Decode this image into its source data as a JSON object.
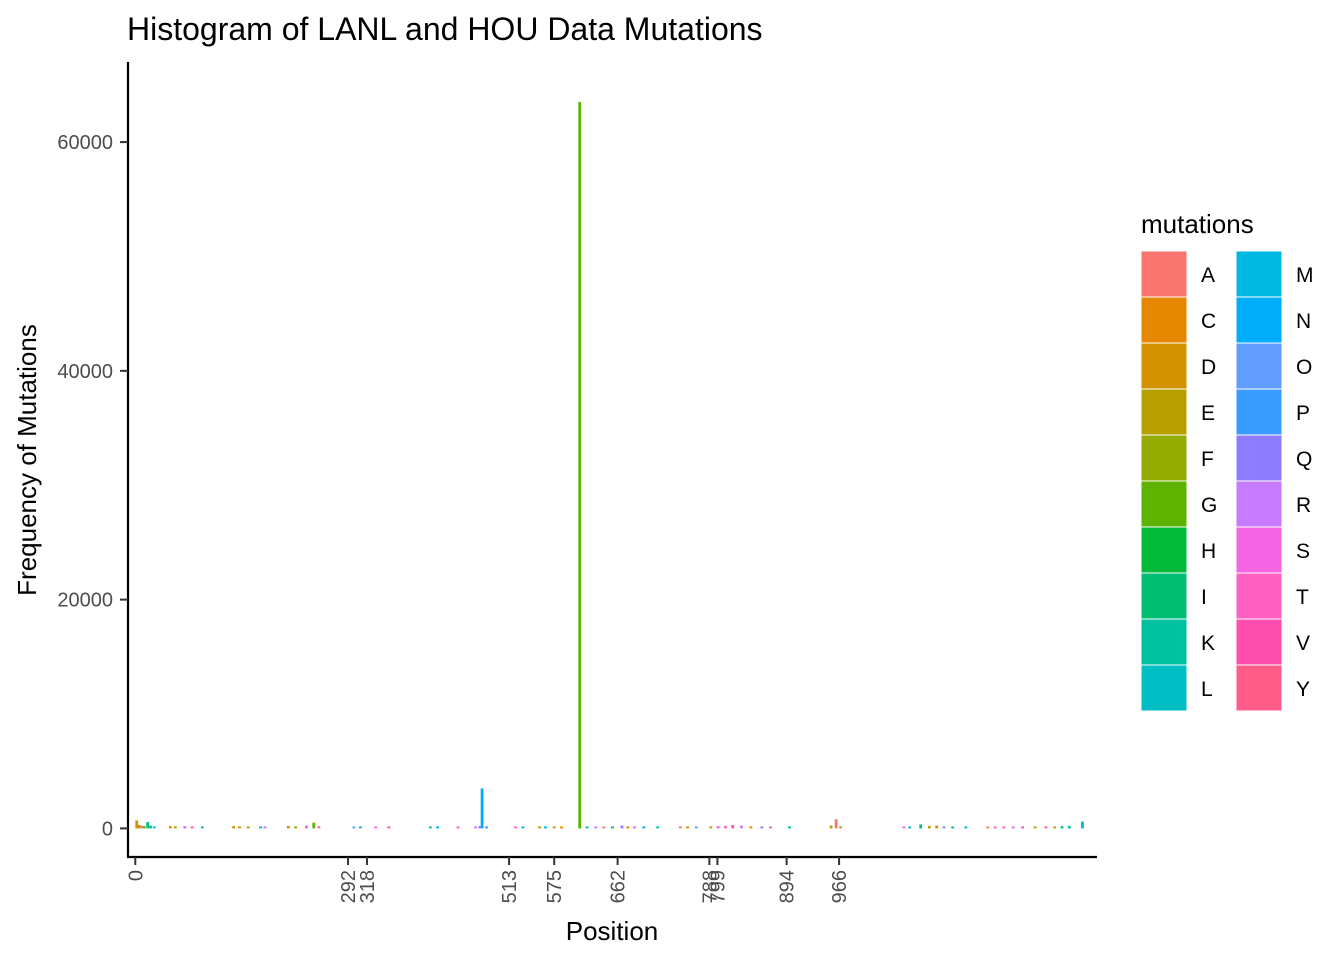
{
  "chart_data": {
    "type": "bar",
    "title": "Histogram of LANL and HOU Data Mutations",
    "xlabel": "Position",
    "ylabel": "Frequency of Mutations",
    "ylim": [
      -2500,
      67000
    ],
    "xlim": [
      -10,
      1320
    ],
    "y_ticks": [
      0,
      20000,
      40000,
      60000
    ],
    "y_tick_labels": [
      "0",
      "20000",
      "40000",
      "60000"
    ],
    "x_ticks": [
      0,
      292,
      318,
      513,
      575,
      662,
      788,
      799,
      894,
      966
    ],
    "x_tick_labels": [
      "0",
      "292",
      "318",
      "513",
      "575",
      "662",
      "788",
      "799",
      "894",
      "966"
    ],
    "grid": false,
    "legend": {
      "title": "mutations",
      "placement": "right",
      "columns": 2,
      "entries": [
        {
          "label": "A",
          "color": "#F8766D"
        },
        {
          "label": "C",
          "color": "#E58700"
        },
        {
          "label": "D",
          "color": "#D39200"
        },
        {
          "label": "E",
          "color": "#B79F00"
        },
        {
          "label": "F",
          "color": "#93AA00"
        },
        {
          "label": "G",
          "color": "#5EB300"
        },
        {
          "label": "H",
          "color": "#00BA38"
        },
        {
          "label": "I",
          "color": "#00BF74"
        },
        {
          "label": "K",
          "color": "#00C19F"
        },
        {
          "label": "L",
          "color": "#00BFC4"
        },
        {
          "label": "M",
          "color": "#00B9E3"
        },
        {
          "label": "N",
          "color": "#00ADFA"
        },
        {
          "label": "O",
          "color": "#619CFF"
        },
        {
          "label": "P",
          "color": "#3B9CFF"
        },
        {
          "label": "Q",
          "color": "#8D7CFF"
        },
        {
          "label": "R",
          "color": "#C77CFF"
        },
        {
          "label": "S",
          "color": "#F564E3"
        },
        {
          "label": "T",
          "color": "#FF61C3"
        },
        {
          "label": "V",
          "color": "#FF4FAE"
        },
        {
          "label": "Y",
          "color": "#FF5C8A"
        }
      ]
    },
    "bars": [
      {
        "x": 2,
        "y": 700,
        "mutation": "D"
      },
      {
        "x": 5,
        "y": 300,
        "mutation": "E"
      },
      {
        "x": 8,
        "y": 250,
        "mutation": "A"
      },
      {
        "x": 12,
        "y": 200,
        "mutation": "G"
      },
      {
        "x": 17,
        "y": 550,
        "mutation": "I"
      },
      {
        "x": 21,
        "y": 250,
        "mutation": "L"
      },
      {
        "x": 26,
        "y": 150,
        "mutation": "M"
      },
      {
        "x": 48,
        "y": 200,
        "mutation": "C"
      },
      {
        "x": 55,
        "y": 150,
        "mutation": "E"
      },
      {
        "x": 68,
        "y": 200,
        "mutation": "S"
      },
      {
        "x": 78,
        "y": 180,
        "mutation": "T"
      },
      {
        "x": 92,
        "y": 150,
        "mutation": "K"
      },
      {
        "x": 135,
        "y": 200,
        "mutation": "C"
      },
      {
        "x": 143,
        "y": 160,
        "mutation": "D"
      },
      {
        "x": 155,
        "y": 140,
        "mutation": "E"
      },
      {
        "x": 172,
        "y": 120,
        "mutation": "L"
      },
      {
        "x": 178,
        "y": 150,
        "mutation": "R"
      },
      {
        "x": 210,
        "y": 220,
        "mutation": "C"
      },
      {
        "x": 220,
        "y": 150,
        "mutation": "F"
      },
      {
        "x": 235,
        "y": 250,
        "mutation": "S"
      },
      {
        "x": 245,
        "y": 500,
        "mutation": "G"
      },
      {
        "x": 252,
        "y": 200,
        "mutation": "T"
      },
      {
        "x": 300,
        "y": 120,
        "mutation": "O"
      },
      {
        "x": 309,
        "y": 100,
        "mutation": "L"
      },
      {
        "x": 330,
        "y": 130,
        "mutation": "S"
      },
      {
        "x": 348,
        "y": 120,
        "mutation": "V"
      },
      {
        "x": 405,
        "y": 110,
        "mutation": "K"
      },
      {
        "x": 415,
        "y": 100,
        "mutation": "N"
      },
      {
        "x": 443,
        "y": 120,
        "mutation": "T"
      },
      {
        "x": 467,
        "y": 180,
        "mutation": "R"
      },
      {
        "x": 473,
        "y": 200,
        "mutation": "Q"
      },
      {
        "x": 476,
        "y": 3500,
        "mutation": "N"
      },
      {
        "x": 482,
        "y": 160,
        "mutation": "P"
      },
      {
        "x": 522,
        "y": 120,
        "mutation": "T"
      },
      {
        "x": 532,
        "y": 100,
        "mutation": "N"
      },
      {
        "x": 555,
        "y": 130,
        "mutation": "D"
      },
      {
        "x": 563,
        "y": 100,
        "mutation": "M"
      },
      {
        "x": 575,
        "y": 120,
        "mutation": "E"
      },
      {
        "x": 585,
        "y": 110,
        "mutation": "C"
      },
      {
        "x": 610,
        "y": 63500,
        "mutation": "G"
      },
      {
        "x": 620,
        "y": 130,
        "mutation": "L"
      },
      {
        "x": 632,
        "y": 120,
        "mutation": "R"
      },
      {
        "x": 643,
        "y": 110,
        "mutation": "A"
      },
      {
        "x": 655,
        "y": 120,
        "mutation": "I"
      },
      {
        "x": 668,
        "y": 250,
        "mutation": "Q"
      },
      {
        "x": 676,
        "y": 180,
        "mutation": "C"
      },
      {
        "x": 685,
        "y": 150,
        "mutation": "S"
      },
      {
        "x": 698,
        "y": 120,
        "mutation": "N"
      },
      {
        "x": 717,
        "y": 100,
        "mutation": "K"
      },
      {
        "x": 748,
        "y": 160,
        "mutation": "A"
      },
      {
        "x": 758,
        "y": 140,
        "mutation": "D"
      },
      {
        "x": 770,
        "y": 120,
        "mutation": "O"
      },
      {
        "x": 790,
        "y": 180,
        "mutation": "E"
      },
      {
        "x": 800,
        "y": 200,
        "mutation": "S"
      },
      {
        "x": 810,
        "y": 220,
        "mutation": "T"
      },
      {
        "x": 820,
        "y": 300,
        "mutation": "V"
      },
      {
        "x": 832,
        "y": 250,
        "mutation": "R"
      },
      {
        "x": 845,
        "y": 180,
        "mutation": "C"
      },
      {
        "x": 860,
        "y": 150,
        "mutation": "Q"
      },
      {
        "x": 872,
        "y": 140,
        "mutation": "Y"
      },
      {
        "x": 898,
        "y": 120,
        "mutation": "K"
      },
      {
        "x": 955,
        "y": 250,
        "mutation": "E"
      },
      {
        "x": 962,
        "y": 800,
        "mutation": "A"
      },
      {
        "x": 968,
        "y": 150,
        "mutation": "D"
      },
      {
        "x": 1055,
        "y": 150,
        "mutation": "S"
      },
      {
        "x": 1063,
        "y": 120,
        "mutation": "L"
      },
      {
        "x": 1078,
        "y": 350,
        "mutation": "I"
      },
      {
        "x": 1090,
        "y": 220,
        "mutation": "E"
      },
      {
        "x": 1100,
        "y": 250,
        "mutation": "C"
      },
      {
        "x": 1110,
        "y": 150,
        "mutation": "Q"
      },
      {
        "x": 1122,
        "y": 120,
        "mutation": "K"
      },
      {
        "x": 1140,
        "y": 100,
        "mutation": "M"
      },
      {
        "x": 1170,
        "y": 160,
        "mutation": "A"
      },
      {
        "x": 1180,
        "y": 140,
        "mutation": "S"
      },
      {
        "x": 1192,
        "y": 120,
        "mutation": "T"
      },
      {
        "x": 1205,
        "y": 150,
        "mutation": "R"
      },
      {
        "x": 1218,
        "y": 120,
        "mutation": "V"
      },
      {
        "x": 1235,
        "y": 130,
        "mutation": "E"
      },
      {
        "x": 1250,
        "y": 120,
        "mutation": "Y"
      },
      {
        "x": 1262,
        "y": 150,
        "mutation": "D"
      },
      {
        "x": 1272,
        "y": 200,
        "mutation": "I"
      },
      {
        "x": 1282,
        "y": 220,
        "mutation": "K"
      },
      {
        "x": 1300,
        "y": 600,
        "mutation": "M"
      }
    ]
  }
}
